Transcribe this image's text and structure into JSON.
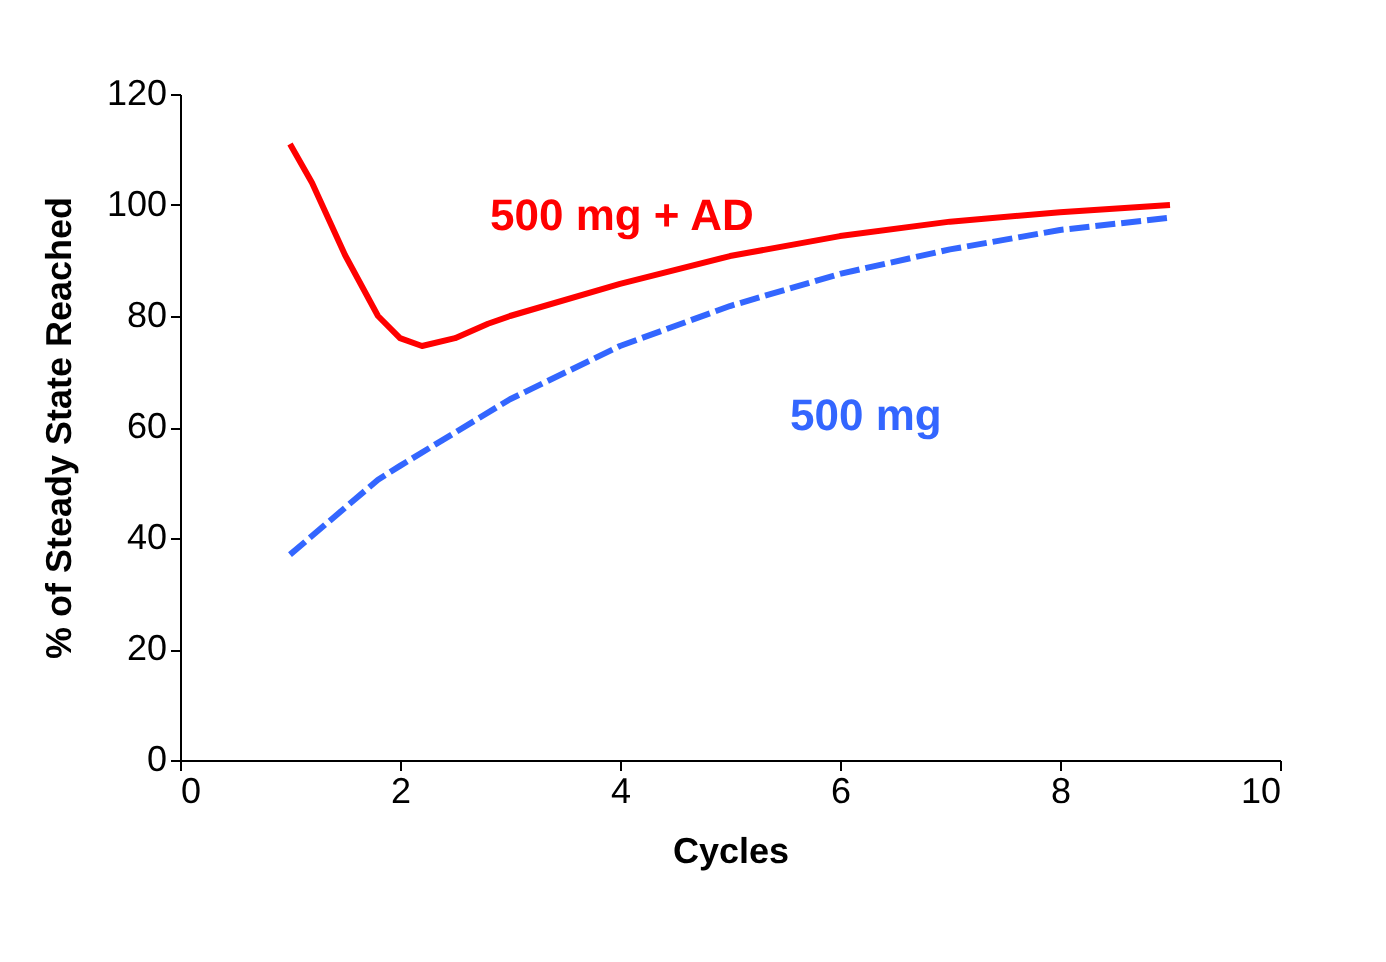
{
  "chart_data": {
    "type": "line",
    "xlabel": "Cycles",
    "ylabel": "% of Steady State Reached",
    "xlim": [
      0,
      10
    ],
    "xticks": [
      0,
      2,
      4,
      6,
      8,
      10
    ],
    "ylim": [
      0,
      120
    ],
    "yticks": [
      0,
      20,
      40,
      60,
      80,
      100,
      120
    ],
    "grid": false,
    "marker": "none",
    "series": [
      {
        "name": "500 mg + AD",
        "color": "#ff0000",
        "line_style": "solid",
        "x": [
          1,
          1.2,
          1.5,
          1.8,
          2,
          2.2,
          2.5,
          2.8,
          3,
          4,
          5,
          6,
          7,
          8,
          9
        ],
        "values": [
          111,
          104,
          91,
          80,
          76,
          74.6,
          76,
          78.6,
          80,
          85.8,
          90.8,
          94.4,
          97,
          98.7,
          100
        ]
      },
      {
        "name": "500 mg",
        "color": "#3366ff",
        "line_style": "dashed",
        "x": [
          1,
          1.8,
          2,
          3,
          4,
          5,
          6,
          7,
          8,
          9
        ],
        "values": [
          37,
          50.5,
          53,
          65,
          74.6,
          81.8,
          87.6,
          92,
          95.5,
          97.7
        ]
      }
    ]
  }
}
